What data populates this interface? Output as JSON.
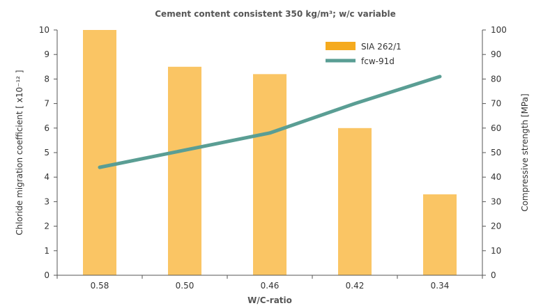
{
  "chart_data": {
    "type": "bar",
    "title": "Cement content consistent 350 kg/m³; w/c variable",
    "xlabel": "W/C-ratio",
    "ylabel": "Chloride migration coefficient [ x10⁻¹² ]",
    "y2label": "Compressive strength [MPa]",
    "categories": [
      "0.58",
      "0.50",
      "0.46",
      "0.42",
      "0.34"
    ],
    "ylim": [
      0,
      10
    ],
    "y2lim": [
      0,
      100
    ],
    "yticks": [
      0,
      1,
      2,
      3,
      4,
      5,
      6,
      7,
      8,
      9,
      10
    ],
    "y2ticks": [
      0,
      10,
      20,
      30,
      40,
      50,
      60,
      70,
      80,
      90,
      100
    ],
    "grid": false,
    "legend_position": "top-right",
    "series": [
      {
        "name": "SIA 262/1",
        "type": "bar",
        "axis": "left",
        "color": "#FAC564",
        "legend_color": "#F5AA1E",
        "values": [
          10.0,
          8.5,
          8.2,
          6.0,
          3.3
        ]
      },
      {
        "name": "fcw-91d",
        "type": "line",
        "axis": "right",
        "color": "#5A9E94",
        "values": [
          44,
          51,
          58,
          70,
          81
        ]
      }
    ]
  }
}
